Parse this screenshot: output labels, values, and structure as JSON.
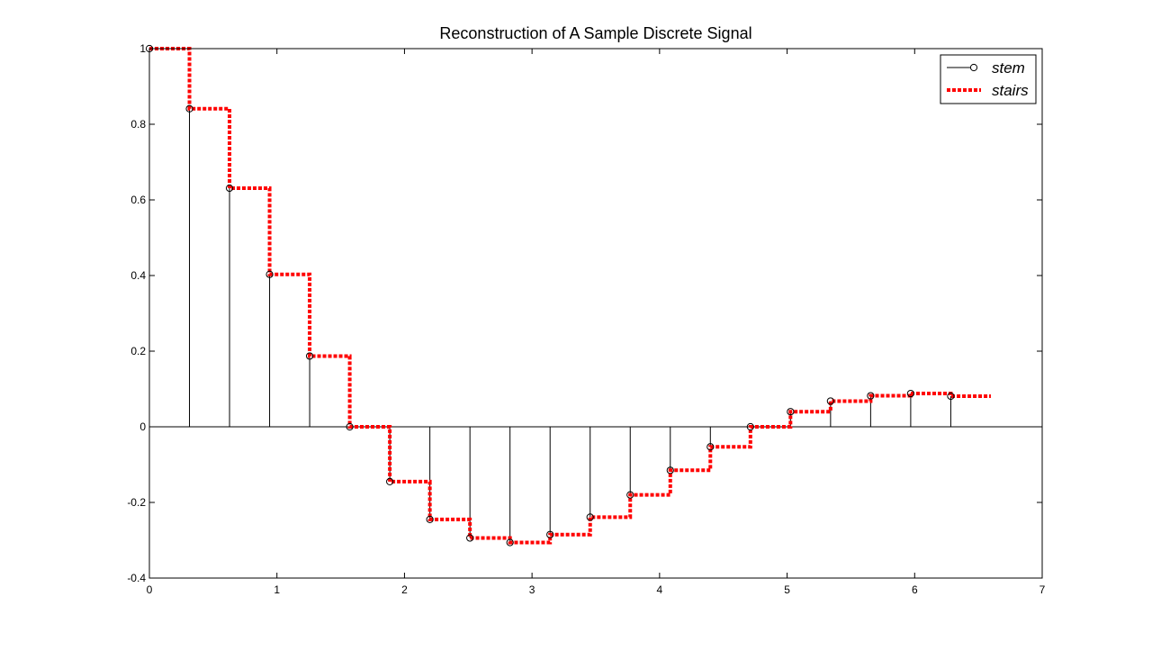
{
  "chart_data": {
    "type": "line",
    "title": "Reconstruction of A Sample Discrete Signal",
    "xlabel": "",
    "ylabel": "",
    "xlim": [
      0,
      7
    ],
    "ylim": [
      -0.4,
      1
    ],
    "x_ticks": [
      "0",
      "1",
      "2",
      "3",
      "4",
      "5",
      "6",
      "7"
    ],
    "y_ticks": [
      "-0.4",
      "-0.2",
      "0",
      "0.2",
      "0.4",
      "0.6",
      "0.8",
      "1"
    ],
    "grid": false,
    "legend_position": "top-right",
    "x": [
      0,
      0.3142,
      0.6283,
      0.9425,
      1.2566,
      1.5708,
      1.885,
      2.1991,
      2.5133,
      2.8274,
      3.1416,
      3.4558,
      3.7699,
      4.0841,
      4.3982,
      4.7124,
      5.0265,
      5.3407,
      5.6549,
      5.969,
      6.2832
    ],
    "series": [
      {
        "name": "stem",
        "style": "stem",
        "color": "#000000",
        "values": [
          1.0,
          0.841,
          0.631,
          0.403,
          0.187,
          0.0,
          -0.145,
          -0.245,
          -0.294,
          -0.306,
          -0.285,
          -0.239,
          -0.18,
          -0.115,
          -0.053,
          0.0,
          0.04,
          0.068,
          0.082,
          0.088,
          0.081
        ]
      },
      {
        "name": "stairs",
        "style": "stairs",
        "color": "#ff0000",
        "values": [
          1.0,
          0.841,
          0.631,
          0.403,
          0.187,
          0.0,
          -0.145,
          -0.245,
          -0.294,
          -0.306,
          -0.285,
          -0.239,
          -0.18,
          -0.115,
          -0.053,
          0.0,
          0.04,
          0.068,
          0.082,
          0.088,
          0.081
        ]
      }
    ]
  }
}
